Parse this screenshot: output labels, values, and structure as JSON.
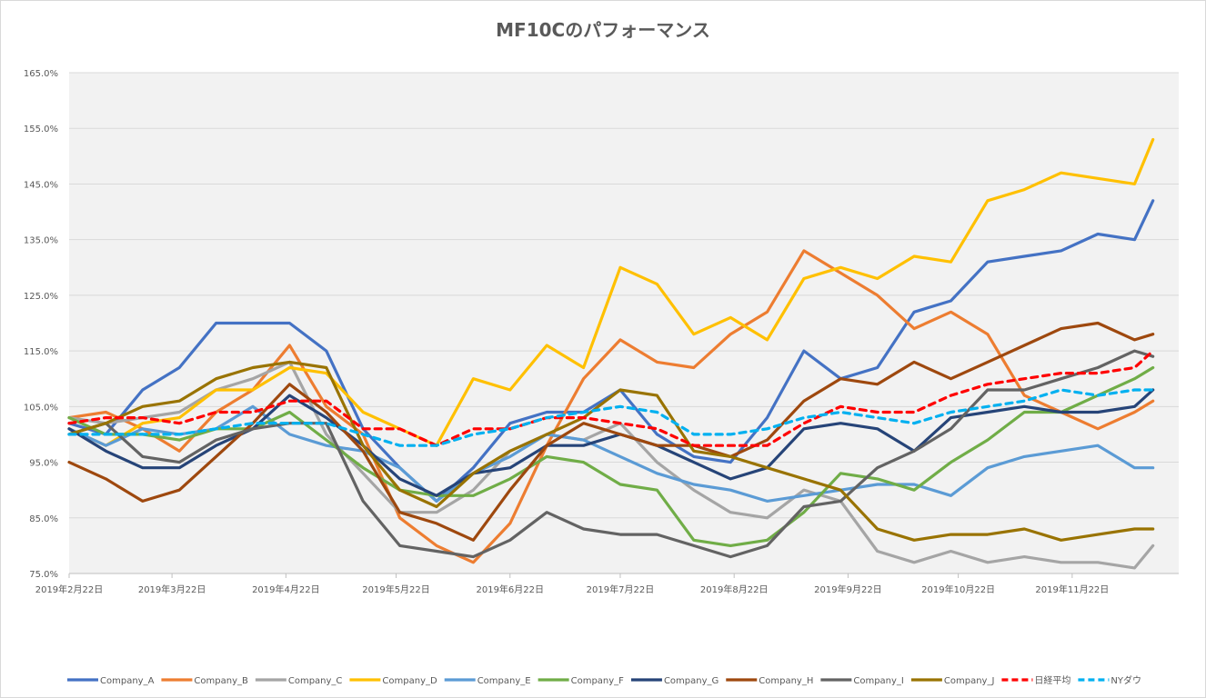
{
  "chart_data": {
    "type": "line",
    "title": "MF10Cのパフォーマンス",
    "xlabel": "",
    "ylabel": "",
    "ylim": [
      75,
      165
    ],
    "yticks": [
      "75.0%",
      "85.0%",
      "95.0%",
      "105.0%",
      "115.0%",
      "125.0%",
      "135.0%",
      "145.0%",
      "155.0%",
      "165.0%"
    ],
    "ytick_values": [
      75,
      85,
      95,
      105,
      115,
      125,
      135,
      145,
      155,
      165
    ],
    "xlim": [
      0,
      302
    ],
    "x_unit": "days since 2019-02-22",
    "xticks": [
      {
        "day": 0,
        "label": "2019年2月22日"
      },
      {
        "day": 28,
        "label": "2019年3月22日"
      },
      {
        "day": 59,
        "label": "2019年4月22日"
      },
      {
        "day": 89,
        "label": "2019年5月22日"
      },
      {
        "day": 120,
        "label": "2019年6月22日"
      },
      {
        "day": 150,
        "label": "2019年7月22日"
      },
      {
        "day": 181,
        "label": "2019年8月22日"
      },
      {
        "day": 212,
        "label": "2019年9月22日"
      },
      {
        "day": 242,
        "label": "2019年10月22日"
      },
      {
        "day": 273,
        "label": "2019年11月22日"
      }
    ],
    "grid": true,
    "legend": "bottom",
    "x": [
      0,
      10,
      20,
      30,
      40,
      50,
      60,
      70,
      80,
      90,
      100,
      110,
      120,
      130,
      140,
      150,
      160,
      170,
      180,
      190,
      200,
      210,
      220,
      230,
      240,
      250,
      260,
      270,
      280,
      290,
      295
    ],
    "series": [
      {
        "name": "Company_A",
        "color": "#4472c4",
        "dashed": false,
        "values": [
          102,
          100,
          108,
          112,
          120,
          120,
          120,
          115,
          101,
          94,
          88,
          94,
          102,
          104,
          104,
          108,
          100,
          96,
          95,
          103,
          115,
          110,
          112,
          122,
          124,
          131,
          132,
          133,
          136,
          135,
          142
        ]
      },
      {
        "name": "Company_B",
        "color": "#ed7d31",
        "dashed": false,
        "values": [
          103,
          104,
          101,
          97,
          104,
          108,
          116,
          105,
          100,
          85,
          80,
          77,
          84,
          98,
          110,
          117,
          113,
          112,
          118,
          122,
          133,
          129,
          125,
          119,
          122,
          118,
          107,
          104,
          101,
          104,
          106
        ]
      },
      {
        "name": "Company_C",
        "color": "#a5a5a5",
        "dashed": false,
        "values": [
          103,
          102,
          103,
          104,
          108,
          110,
          113,
          100,
          93,
          86,
          86,
          90,
          97,
          100,
          99,
          102,
          95,
          90,
          86,
          85,
          90,
          88,
          79,
          77,
          79,
          77,
          78,
          77,
          77,
          76,
          80
        ]
      },
      {
        "name": "Company_D",
        "color": "#ffc000",
        "dashed": false,
        "values": [
          101,
          98,
          102,
          103,
          108,
          108,
          112,
          111,
          104,
          101,
          98,
          110,
          108,
          116,
          112,
          130,
          127,
          118,
          121,
          117,
          128,
          130,
          128,
          132,
          131,
          142,
          144,
          147,
          146,
          145,
          153
        ]
      },
      {
        "name": "Company_E",
        "color": "#5b9bd5",
        "dashed": false,
        "values": [
          101,
          98,
          101,
          100,
          101,
          105,
          100,
          98,
          97,
          94,
          88,
          93,
          96,
          100,
          99,
          96,
          93,
          91,
          90,
          88,
          89,
          90,
          91,
          91,
          89,
          94,
          96,
          97,
          98,
          94,
          94
        ]
      },
      {
        "name": "Company_F",
        "color": "#70ad47",
        "dashed": false,
        "values": [
          103,
          100,
          100,
          99,
          101,
          101,
          104,
          99,
          94,
          90,
          89,
          89,
          92,
          96,
          95,
          91,
          90,
          81,
          80,
          81,
          86,
          93,
          92,
          90,
          95,
          99,
          104,
          104,
          107,
          110,
          112
        ]
      },
      {
        "name": "Company_G",
        "color": "#264478",
        "dashed": false,
        "values": [
          101,
          97,
          94,
          94,
          98,
          101,
          107,
          103,
          98,
          92,
          89,
          93,
          94,
          98,
          98,
          100,
          98,
          95,
          92,
          94,
          101,
          102,
          101,
          97,
          103,
          104,
          105,
          104,
          104,
          105,
          108
        ]
      },
      {
        "name": "Company_H",
        "color": "#9e480e",
        "dashed": false,
        "values": [
          95,
          92,
          88,
          90,
          96,
          102,
          109,
          104,
          97,
          86,
          84,
          81,
          90,
          98,
          102,
          100,
          98,
          98,
          96,
          99,
          106,
          110,
          109,
          113,
          110,
          113,
          116,
          119,
          120,
          117,
          118
        ]
      },
      {
        "name": "Company_I",
        "color": "#636363",
        "dashed": false,
        "values": [
          100,
          102,
          96,
          95,
          99,
          101,
          102,
          102,
          88,
          80,
          79,
          78,
          81,
          86,
          83,
          82,
          82,
          80,
          78,
          80,
          87,
          88,
          94,
          97,
          101,
          108,
          108,
          110,
          112,
          115,
          114
        ]
      },
      {
        "name": "Company_J",
        "color": "#997300",
        "dashed": false,
        "values": [
          100,
          102,
          105,
          106,
          110,
          112,
          113,
          112,
          98,
          90,
          87,
          93,
          97,
          100,
          103,
          108,
          107,
          97,
          96,
          94,
          92,
          90,
          83,
          81,
          82,
          82,
          83,
          81,
          82,
          83,
          83
        ]
      },
      {
        "name": "日経平均",
        "color": "#ff0000",
        "dashed": true,
        "values": [
          102,
          103,
          103,
          102,
          104,
          104,
          106,
          106,
          101,
          101,
          98,
          101,
          101,
          103,
          103,
          102,
          101,
          98,
          98,
          98,
          102,
          105,
          104,
          104,
          107,
          109,
          110,
          111,
          111,
          112,
          115
        ]
      },
      {
        "name": "NYダウ",
        "color": "#00b0f0",
        "dashed": true,
        "values": [
          100,
          100,
          100,
          100,
          101,
          102,
          102,
          102,
          100,
          98,
          98,
          100,
          101,
          103,
          104,
          105,
          104,
          100,
          100,
          101,
          103,
          104,
          103,
          102,
          104,
          105,
          106,
          108,
          107,
          108,
          108
        ]
      }
    ]
  }
}
